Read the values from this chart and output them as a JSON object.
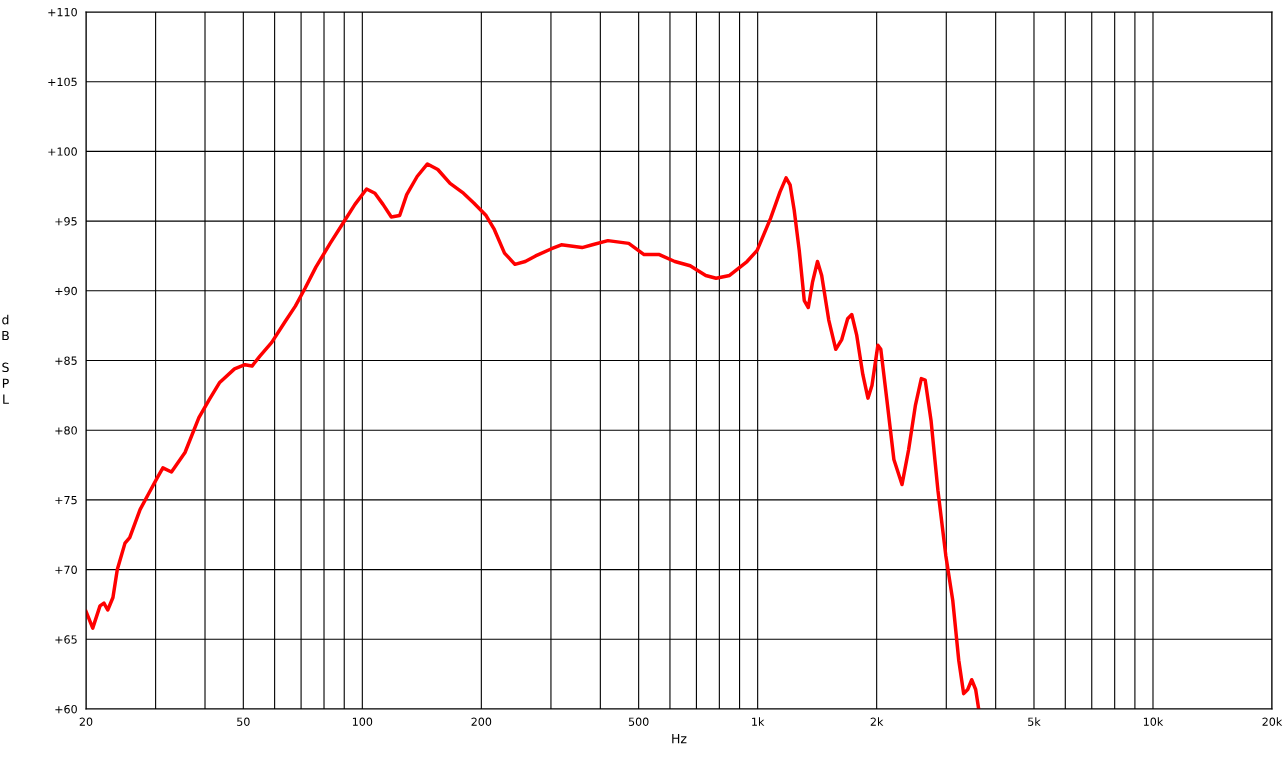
{
  "chart_data": {
    "type": "line",
    "xlabel": "Hz",
    "ylabel": "dB SPL",
    "log": "x",
    "grid": true,
    "marker": "none",
    "line_style": "solid",
    "xlim": [
      20,
      20000
    ],
    "ylim": [
      60,
      110
    ],
    "xticks": [
      20,
      {
        "value": 30,
        "label": null
      },
      {
        "value": 40,
        "label": null
      },
      50,
      {
        "value": 60,
        "label": null
      },
      {
        "value": 70,
        "label": null
      },
      {
        "value": 80,
        "label": null
      },
      {
        "value": 90,
        "label": null
      },
      100,
      200,
      {
        "value": 300,
        "label": null
      },
      {
        "value": 400,
        "label": null
      },
      500,
      {
        "value": 600,
        "label": null
      },
      {
        "value": 700,
        "label": null
      },
      {
        "value": 800,
        "label": null
      },
      {
        "value": 900,
        "label": null
      },
      {
        "value": 1000,
        "label": "1k"
      },
      {
        "value": 2000,
        "label": "2k"
      },
      {
        "value": 3000,
        "label": null
      },
      {
        "value": 4000,
        "label": null
      },
      {
        "value": 5000,
        "label": "5k"
      },
      {
        "value": 6000,
        "label": null
      },
      {
        "value": 7000,
        "label": null
      },
      {
        "value": 8000,
        "label": null
      },
      {
        "value": 9000,
        "label": null
      },
      {
        "value": 10000,
        "label": "10k"
      },
      {
        "value": 20000,
        "label": "20k"
      }
    ],
    "yticks": [
      {
        "value": 60,
        "label": "+60"
      },
      {
        "value": 65,
        "label": "+65"
      },
      {
        "value": 70,
        "label": "+70"
      },
      {
        "value": 75,
        "label": "+75"
      },
      {
        "value": 80,
        "label": "+80"
      },
      {
        "value": 85,
        "label": "+85"
      },
      {
        "value": 90,
        "label": "+90"
      },
      {
        "value": 95,
        "label": "+95"
      },
      {
        "value": 100,
        "label": "+100"
      },
      {
        "value": 105,
        "label": "+105"
      },
      {
        "value": 110,
        "label": "+110"
      }
    ],
    "x": [
      20,
      20.8,
      21.7,
      22.2,
      22.7,
      23.4,
      24.0,
      25.1,
      25.8,
      27.4,
      29.0,
      30.3,
      31.3,
      32.9,
      35.6,
      38.6,
      41.0,
      43.5,
      47.5,
      50.5,
      52.6,
      55.0,
      59.0,
      63.8,
      67.7,
      71.7,
      76.3,
      82.9,
      90.5,
      95.8,
      102.5,
      107.6,
      112.8,
      118.4,
      124.3,
      129.5,
      137.6,
      146.1,
      155.2,
      166.7,
      180.2,
      191.4,
      205.6,
      215.7,
      228.9,
      243.2,
      258.3,
      274.3,
      300,
      318.7,
      359.7,
      382,
      418,
      472,
      516,
      564,
      617,
      675,
      739,
      785,
      849,
      940,
      997,
      1078,
      1139,
      1180,
      1208,
      1237,
      1274,
      1312,
      1343,
      1376,
      1417,
      1452,
      1513,
      1576,
      1632,
      1689,
      1730,
      1781,
      1845,
      1901,
      1946,
      2014,
      2049,
      2122,
      2211,
      2318,
      2409,
      2507,
      2594,
      2653,
      2745,
      2857,
      2992,
      3115,
      3226,
      3320,
      3399,
      3479,
      3560,
      3623
    ],
    "series": [
      {
        "color": "#ff0000",
        "values": [
          67.0,
          65.8,
          67.4,
          67.6,
          67.1,
          68.0,
          70.0,
          71.9,
          72.3,
          74.3,
          75.6,
          76.6,
          77.3,
          77.0,
          78.4,
          80.9,
          82.2,
          83.4,
          84.4,
          84.7,
          84.6,
          85.3,
          86.3,
          87.8,
          88.9,
          90.2,
          91.7,
          93.4,
          95.1,
          96.2,
          97.3,
          97.0,
          96.2,
          95.3,
          95.4,
          96.9,
          98.2,
          99.1,
          98.7,
          97.7,
          97.0,
          96.3,
          95.4,
          94.4,
          92.7,
          91.9,
          92.1,
          92.5,
          93.0,
          93.3,
          93.1,
          93.3,
          93.6,
          93.4,
          92.6,
          92.6,
          92.1,
          91.8,
          91.1,
          90.9,
          91.1,
          92.1,
          92.9,
          95.2,
          97.1,
          98.1,
          97.6,
          95.8,
          92.9,
          89.3,
          88.8,
          90.6,
          92.1,
          91.1,
          87.9,
          85.8,
          86.5,
          88.0,
          88.3,
          86.8,
          84.0,
          82.3,
          83.2,
          86.1,
          85.8,
          82.2,
          77.9,
          76.1,
          78.6,
          81.8,
          83.7,
          83.6,
          80.7,
          75.7,
          71.0,
          67.8,
          63.5,
          61.1,
          61.4,
          62.1,
          61.4,
          60.0
        ]
      }
    ]
  }
}
